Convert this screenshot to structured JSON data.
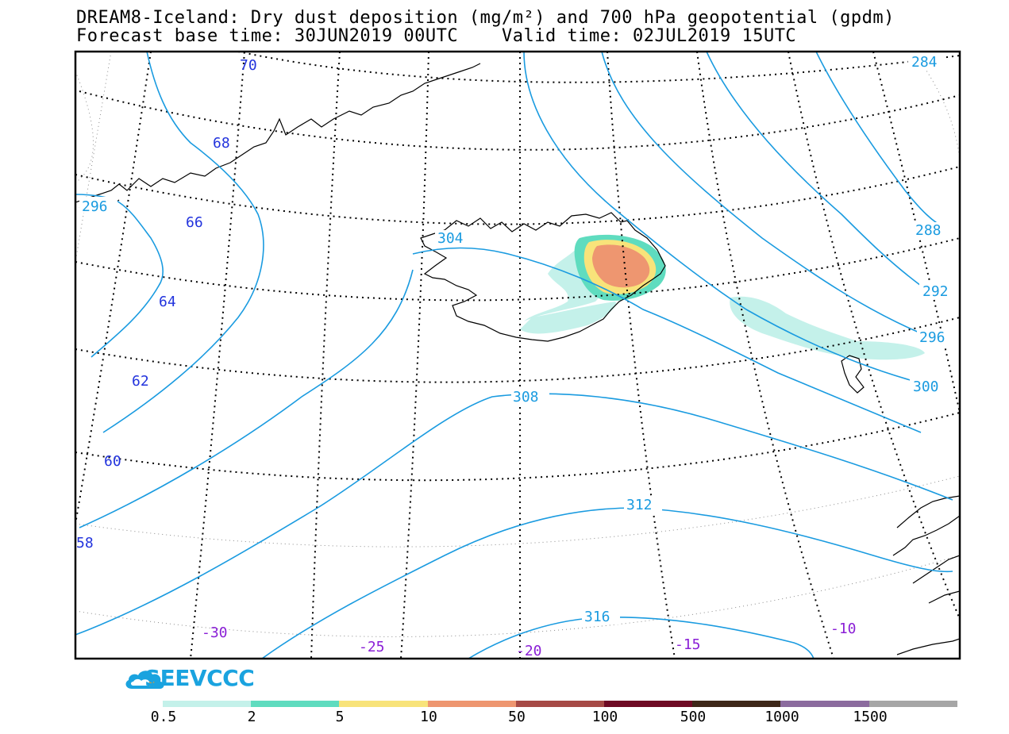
{
  "header": {
    "title_line1": "DREAM8-Iceland: Dry dust deposition (mg/m²) and 700 hPa geopotential (gpdm)",
    "title_line2": "Forecast base time: 30JUN2019 00UTC    Valid time: 02JUL2019 15UTC"
  },
  "map": {
    "latitude_labels": [
      "70",
      "68",
      "66",
      "64",
      "62",
      "60",
      "58"
    ],
    "longitude_labels": [
      "-30",
      "-25",
      "-20",
      "-15",
      "-10"
    ],
    "contour_labels": [
      "284",
      "288",
      "292",
      "296",
      "300",
      "296",
      "304",
      "308",
      "312",
      "316"
    ],
    "contour_color": "#1a9be0",
    "lat_label_color": "#2233dd",
    "lon_label_color": "#8a1fd6",
    "regions": [
      "Iceland",
      "Greenland",
      "Faroe Islands",
      "Norway"
    ]
  },
  "brand": {
    "name": "SEEVCCC",
    "color": "#1aa3df",
    "accent": "#f29a23"
  },
  "legend": {
    "bins": [
      {
        "color": "#c4f1ea"
      },
      {
        "color": "#5fdcbf"
      },
      {
        "color": "#f8e37a"
      },
      {
        "color": "#ee9670"
      },
      {
        "color": "#a64a46"
      },
      {
        "color": "#6e0a24"
      },
      {
        "color": "#3d2718"
      },
      {
        "color": "#8b6b9e"
      },
      {
        "color": "#a6a6a6"
      }
    ],
    "labels": [
      "0.5",
      "2",
      "5",
      "10",
      "50",
      "100",
      "500",
      "1000",
      "1500"
    ]
  }
}
